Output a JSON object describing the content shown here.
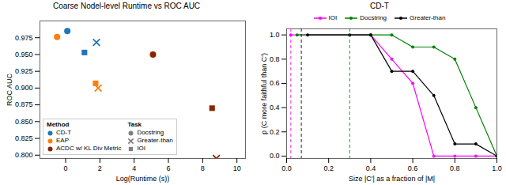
{
  "chart_data": [
    {
      "type": "scatter",
      "title": "Coarse Nodel-level Runtime vs ROC AUC",
      "xlabel": "Log(Runtime (s))",
      "ylabel": "ROC AUC",
      "xlim": [
        -1.5,
        10.5
      ],
      "xticks": [
        0,
        2,
        4,
        6,
        8,
        10
      ],
      "ylim": [
        0.795,
        1.0
      ],
      "yticks": [
        {
          "value": 0.8,
          "label": "0.800"
        },
        0.825,
        {
          "value": 0.85,
          "label": "0.850"
        },
        0.875,
        {
          "value": 0.9,
          "label": "0.900"
        },
        0.925,
        {
          "value": 0.95,
          "label": "0.950"
        },
        0.975
      ],
      "legend": "lower left",
      "legend_groups": [
        {
          "title": "Method",
          "entries": [
            {
              "name": "CD-T",
              "color": "#1f77b4",
              "marker": "circle"
            },
            {
              "name": "EAP",
              "color": "#ff7f0e",
              "marker": "circle"
            },
            {
              "name": "ACDC w/ KL Div Metric",
              "color": "#8B2500",
              "marker": "circle"
            }
          ]
        },
        {
          "title": "Task",
          "entries": [
            {
              "name": "Docstring",
              "color": "gray",
              "marker": "circle"
            },
            {
              "name": "Greater-than",
              "color": "gray",
              "marker": "x"
            },
            {
              "name": "IOI",
              "color": "gray",
              "marker": "square"
            }
          ]
        }
      ],
      "points": [
        {
          "method": "CD-T",
          "task": "Docstring",
          "x": 0.1,
          "y": 0.985
        },
        {
          "method": "CD-T",
          "task": "Greater-than",
          "x": 1.8,
          "y": 0.968
        },
        {
          "method": "CD-T",
          "task": "IOI",
          "x": 1.1,
          "y": 0.953
        },
        {
          "method": "EAP",
          "task": "Docstring",
          "x": -0.5,
          "y": 0.976
        },
        {
          "method": "EAP",
          "task": "Greater-than",
          "x": 1.9,
          "y": 0.9
        },
        {
          "method": "EAP",
          "task": "IOI",
          "x": 1.75,
          "y": 0.907
        },
        {
          "method": "ACDC w/ KL Div Metric",
          "task": "Docstring",
          "x": 5.1,
          "y": 0.95
        },
        {
          "method": "ACDC w/ KL Div Metric",
          "task": "Greater-than",
          "x": 8.8,
          "y": 0.795
        },
        {
          "method": "ACDC w/ KL Div Metric",
          "task": "IOI",
          "x": 8.55,
          "y": 0.87
        }
      ]
    },
    {
      "type": "line",
      "title": "CD-T",
      "xlabel": "Size |C'| as a fraction of |M|",
      "ylabel": "p (C more faithful than C')",
      "xlim": [
        0.0,
        1.0
      ],
      "xticks": [
        {
          "value": 0,
          "label": "0.0"
        },
        0.2,
        0.4,
        0.6,
        0.8,
        {
          "value": 1,
          "label": "1.0"
        }
      ],
      "ylim": [
        -0.02,
        1.05
      ],
      "yticks": [
        {
          "value": 0,
          "label": "0.0"
        },
        0.2,
        0.4,
        0.6,
        0.8,
        {
          "value": 1,
          "label": "1.0"
        }
      ],
      "legend": "top",
      "series": [
        {
          "name": "IOI",
          "color": "#ff00ff",
          "marker": "circle",
          "x": [
            0.02,
            0.4,
            0.5,
            0.6,
            0.7,
            0.8,
            0.9,
            1.0
          ],
          "values": [
            1.0,
            1.0,
            0.8,
            0.6,
            0.0,
            0.0,
            0.0,
            0.0
          ]
        },
        {
          "name": "Docstring",
          "color": "#008000",
          "marker": "circle",
          "x": [
            0.05,
            0.4,
            0.5,
            0.6,
            0.7,
            0.8,
            0.9,
            1.0
          ],
          "values": [
            1.0,
            1.0,
            1.0,
            0.9,
            0.9,
            0.8,
            0.4,
            0.0
          ]
        },
        {
          "name": "Greater-than",
          "color": "#000000",
          "marker": "circle",
          "x": [
            0.1,
            0.3,
            0.4,
            0.5,
            0.6,
            0.7,
            0.8,
            0.9,
            1.0
          ],
          "values": [
            1.0,
            1.0,
            1.0,
            0.7,
            0.7,
            0.5,
            0.1,
            0.1,
            0.0
          ]
        }
      ],
      "vlines": [
        {
          "x": 0.02,
          "color": "#ff00ff",
          "line_style": "dashed"
        },
        {
          "x": 0.07,
          "color": "#000000",
          "line_style": "dashed"
        },
        {
          "x": 0.3,
          "color": "#008000",
          "line_style": "dashed"
        }
      ]
    }
  ]
}
